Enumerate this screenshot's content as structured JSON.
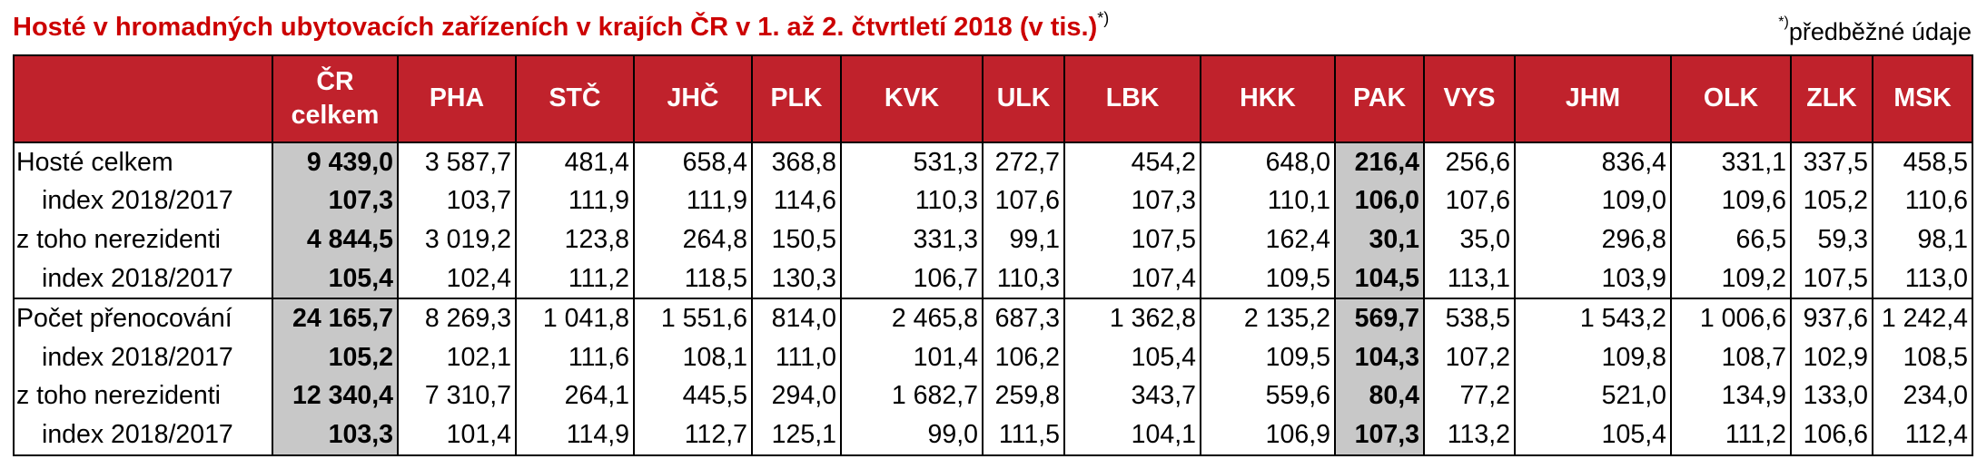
{
  "title": "Hosté v hromadných ubytovacích zařízeních v krajích ČR v 1. až 2. čtvrtletí 2018 (v tis.)",
  "title_mark": "*)",
  "note_mark": "*)",
  "note": "předběžné údaje",
  "colors": {
    "header_bg": "#c0222c",
    "header_text": "#ffffff",
    "title": "#cc0000",
    "highlight": "#c8c8c8"
  },
  "chart_data": {
    "type": "table",
    "columns": [
      "",
      "ČR celkem",
      "PHA",
      "STČ",
      "JHČ",
      "PLK",
      "KVK",
      "ULK",
      "LBK",
      "HKK",
      "PAK",
      "VYS",
      "JHM",
      "OLK",
      "ZLK",
      "MSK"
    ],
    "highlight_columns": [
      "ČR celkem",
      "PAK"
    ],
    "rows": [
      {
        "label": "Hosté celkem",
        "values": [
          "9 439,0",
          "3 587,7",
          "481,4",
          "658,4",
          "368,8",
          "531,3",
          "272,7",
          "454,2",
          "648,0",
          "216,4",
          "256,6",
          "836,4",
          "331,1",
          "337,5",
          "458,5"
        ]
      },
      {
        "label": "index 2018/2017",
        "values": [
          "107,3",
          "103,7",
          "111,9",
          "111,9",
          "114,6",
          "110,3",
          "107,6",
          "107,3",
          "110,1",
          "106,0",
          "107,6",
          "109,0",
          "109,6",
          "105,2",
          "110,6"
        ]
      },
      {
        "label": "z toho nerezidenti",
        "values": [
          "4 844,5",
          "3 019,2",
          "123,8",
          "264,8",
          "150,5",
          "331,3",
          "99,1",
          "107,5",
          "162,4",
          "30,1",
          "35,0",
          "296,8",
          "66,5",
          "59,3",
          "98,1"
        ]
      },
      {
        "label": "index 2018/2017",
        "values": [
          "105,4",
          "102,4",
          "111,2",
          "118,5",
          "130,3",
          "106,7",
          "110,3",
          "107,4",
          "109,5",
          "104,5",
          "113,1",
          "103,9",
          "109,2",
          "107,5",
          "113,0"
        ]
      },
      {
        "label": "Počet přenocování",
        "values": [
          "24 165,7",
          "8 269,3",
          "1 041,8",
          "1 551,6",
          "814,0",
          "2 465,8",
          "687,3",
          "1 362,8",
          "2 135,2",
          "569,7",
          "538,5",
          "1 543,2",
          "1 006,6",
          "937,6",
          "1 242,4"
        ]
      },
      {
        "label": "index 2018/2017",
        "values": [
          "105,2",
          "102,1",
          "111,6",
          "108,1",
          "111,0",
          "101,4",
          "106,2",
          "105,4",
          "109,5",
          "104,3",
          "107,2",
          "109,8",
          "108,7",
          "102,9",
          "108,5"
        ]
      },
      {
        "label": "z toho nerezidenti",
        "values": [
          "12 340,4",
          "7 310,7",
          "264,1",
          "445,5",
          "294,0",
          "1 682,7",
          "259,8",
          "343,7",
          "559,6",
          "80,4",
          "77,2",
          "521,0",
          "134,9",
          "133,0",
          "234,0"
        ]
      },
      {
        "label": "index 2018/2017",
        "values": [
          "103,3",
          "101,4",
          "114,9",
          "112,7",
          "125,1",
          "99,0",
          "111,5",
          "104,1",
          "106,9",
          "107,3",
          "113,2",
          "105,4",
          "111,2",
          "106,6",
          "112,4"
        ]
      }
    ]
  }
}
